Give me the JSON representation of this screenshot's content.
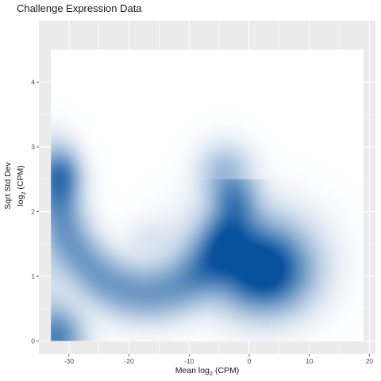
{
  "chart_data": {
    "type": "heatmap",
    "title": "Challenge Expression Data",
    "xlabel": {
      "main": "Mean log",
      "sub": "2",
      "tail": " (CPM)"
    },
    "ylabel": {
      "line1": "Sqrt Std Dev",
      "line2_main": "log",
      "line2_sub": "2",
      "line2_tail": " (CPM)"
    },
    "xlim": [
      -35,
      21
    ],
    "ylim": [
      -0.2,
      4.95
    ],
    "x_ticks": [
      -30,
      -20,
      -10,
      0,
      10,
      20
    ],
    "x_tick_labels": [
      "-30",
      "-20",
      "-10",
      "0",
      "10",
      "20"
    ],
    "y_ticks": [
      0,
      1,
      2,
      3,
      4
    ],
    "y_tick_labels": [
      "0",
      "1",
      "2",
      "3",
      "4"
    ],
    "density_extent": {
      "x": [
        -33,
        19
      ],
      "y": [
        0,
        4.5
      ]
    },
    "grid": true,
    "legend": "none",
    "colors": {
      "low": "#ffffff",
      "high": "#08519c",
      "panel_background": "#ebebeb"
    },
    "density_regions": [
      {
        "label": "arc",
        "center": [
          -17,
          2.5
        ],
        "radius": [
          15,
          1.75
        ],
        "angle_deg": [
          180,
          345
        ],
        "thickness": [
          3.0,
          0.3
        ],
        "peak": 0.55
      },
      {
        "label": "arc-left-end",
        "center": [
          -31,
          2.5
        ],
        "spread": [
          2.2,
          0.3
        ],
        "peak": 0.3
      },
      {
        "label": "arc-right-end",
        "center": [
          -4,
          2.6
        ],
        "spread": [
          3.0,
          0.3
        ],
        "peak": 0.35
      },
      {
        "label": "main-blob",
        "center": [
          2.5,
          1.05
        ],
        "spread": [
          5.2,
          0.42
        ],
        "peak": 1.0
      },
      {
        "label": "main-blob-halo",
        "center": [
          -1,
          1.5
        ],
        "spread": [
          7.0,
          0.45
        ],
        "peak": 0.35
      },
      {
        "label": "bottom-left",
        "center": [
          -32,
          0.05
        ],
        "spread": [
          3.0,
          0.32
        ],
        "peak": 0.65
      },
      {
        "label": "center-faint",
        "center": [
          -17,
          1.6
        ],
        "spread": [
          2.5,
          0.2
        ],
        "peak": 0.08
      },
      {
        "label": "left-edge",
        "center": [
          -33,
          1.0
        ],
        "spread": [
          2.0,
          0.8
        ],
        "peak": 0.1
      }
    ]
  }
}
